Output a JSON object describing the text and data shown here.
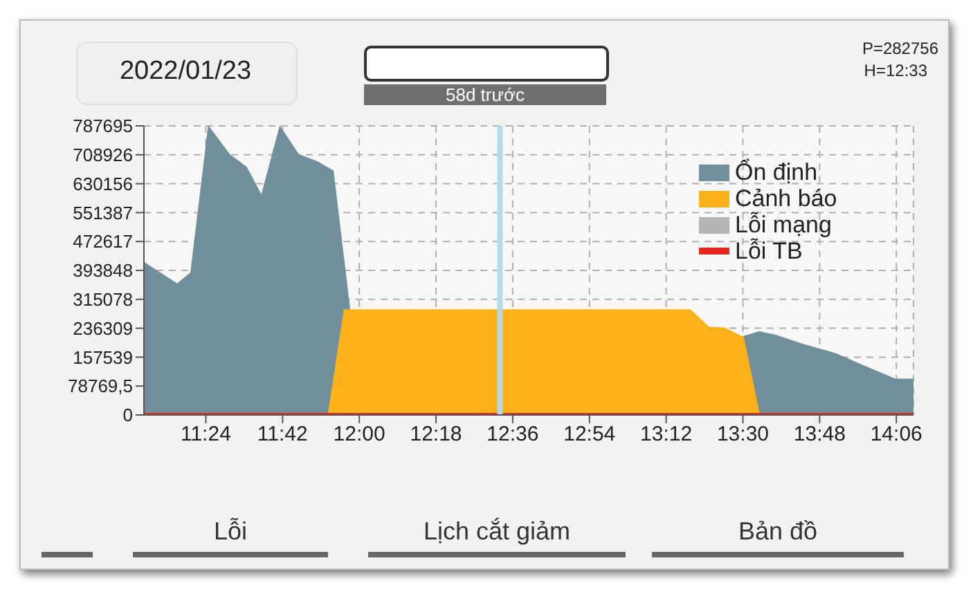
{
  "chart_data": {
    "type": "area",
    "series": [
      {
        "name": "Ổn định",
        "color": "#718f9a",
        "x": [
          11.158,
          11.288,
          11.342,
          11.411,
          11.492,
          11.558,
          11.618,
          11.69,
          11.762,
          11.834,
          11.897,
          11.96,
          12.0,
          13.48,
          13.501,
          13.564,
          13.627,
          13.735,
          13.861,
          13.987,
          14.095,
          14.167
        ],
        "values": [
          415000,
          356000,
          387000,
          785000,
          709000,
          675000,
          596000,
          785000,
          709000,
          690000,
          665000,
          299000,
          0,
          0,
          213000,
          226000,
          217000,
          192000,
          167000,
          129000,
          97000,
          97000
        ]
      },
      {
        "name": "Cảnh báo",
        "color": "#fdb11a",
        "x": [
          11.879,
          11.942,
          13.294,
          13.366,
          13.429,
          13.501,
          13.564
        ],
        "values": [
          0,
          286000,
          286000,
          239000,
          236000,
          211000,
          0
        ]
      },
      {
        "name": "Lỗi mạng",
        "color": "#b5b5b5"
      },
      {
        "name": "Lỗi TB",
        "type": "line",
        "color": "#e8281e",
        "x": [
          11.158,
          14.167
        ],
        "values": [
          0,
          0
        ]
      }
    ],
    "xlim": [
      11.158,
      14.167
    ],
    "xticks": [
      {
        "value": 11.4,
        "label": "11:24"
      },
      {
        "value": 11.7,
        "label": "11:42"
      },
      {
        "value": 12.0,
        "label": "12:00"
      },
      {
        "value": 12.3,
        "label": "12:18"
      },
      {
        "value": 12.6,
        "label": "12:36"
      },
      {
        "value": 12.9,
        "label": "12:54"
      },
      {
        "value": 13.2,
        "label": "13:12"
      },
      {
        "value": 13.5,
        "label": "13:30"
      },
      {
        "value": 13.8,
        "label": "13:48"
      },
      {
        "value": 14.1,
        "label": "14:06"
      }
    ],
    "ylim": [
      0,
      787695
    ],
    "yticks": [
      0,
      {
        "value": 78769.5,
        "label": "78769,5"
      },
      157539,
      236309,
      315078,
      393848,
      472617,
      551387,
      630156,
      708926,
      787695
    ],
    "ref_lines": [
      {
        "axis": "x",
        "value": 12.55,
        "color": "#b3d9ea"
      }
    ],
    "annotations": [
      "2022/01/23",
      "58d trước",
      "P=282756",
      "H=12:33",
      "Lỗi",
      "Lịch cắt giảm",
      "Bản đồ"
    ],
    "grid": true,
    "legend": "top right"
  }
}
